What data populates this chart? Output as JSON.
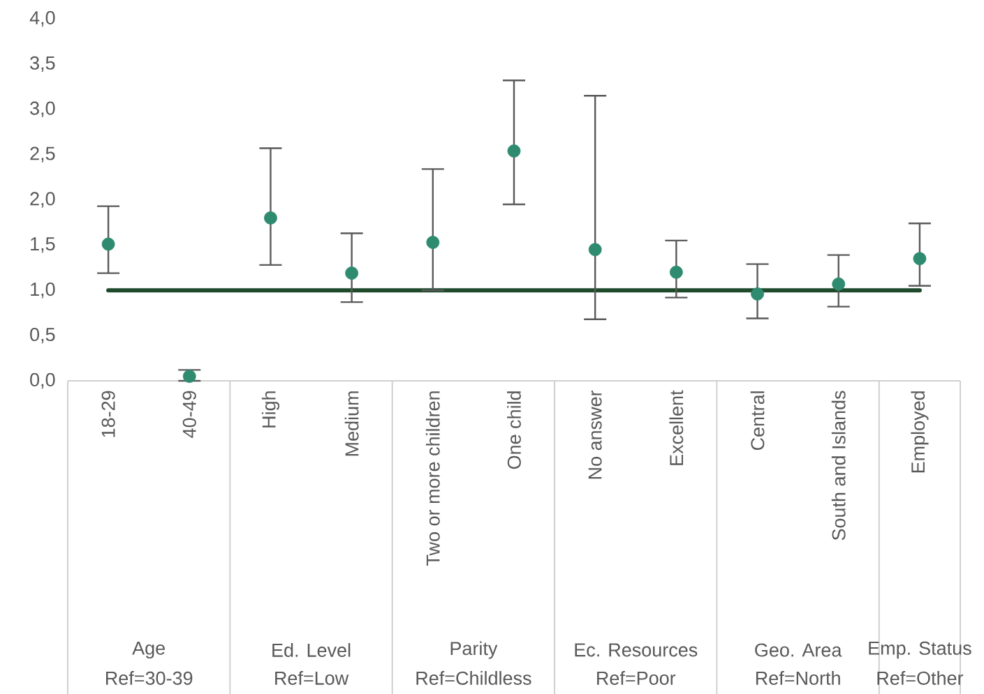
{
  "chart_data": {
    "type": "scatter",
    "categories": [
      "18-29",
      "40-49",
      "High",
      "Medium",
      "Two or more children",
      "One child",
      "No answer",
      "Excellent",
      "Central",
      "South and Islands",
      "Employed"
    ],
    "series": [
      {
        "color": "#2e8b6f",
        "marker": "circle",
        "values": [
          1.51,
          0.05,
          1.8,
          1.19,
          1.53,
          2.54,
          1.45,
          1.2,
          0.96,
          1.07,
          1.35
        ],
        "errors": [
          [
            1.19,
            1.93
          ],
          [
            0.0,
            0.12
          ],
          [
            1.28,
            2.57
          ],
          [
            0.87,
            1.63
          ],
          [
            1.0,
            2.34
          ],
          [
            1.95,
            3.32
          ],
          [
            0.68,
            3.15
          ],
          [
            0.92,
            1.55
          ],
          [
            0.69,
            1.29
          ],
          [
            0.82,
            1.39
          ],
          [
            1.05,
            1.74
          ]
        ]
      },
      {
        "type": "line",
        "color": "#1f4a2c",
        "marker": "none",
        "values": [
          1.0,
          1.0,
          1.0,
          1.0,
          1.0,
          1.0,
          1.0,
          1.0,
          1.0,
          1.0,
          1.0
        ]
      }
    ],
    "ylim": [
      0,
      4
    ],
    "yticks": [
      {
        "value": 0,
        "label": "0,0"
      },
      {
        "value": 0.5,
        "label": "0,5"
      },
      {
        "value": 1,
        "label": "1,0"
      },
      {
        "value": 1.5,
        "label": "1,5"
      },
      {
        "value": 2,
        "label": "2,0"
      },
      {
        "value": 2.5,
        "label": "2,5"
      },
      {
        "value": 3,
        "label": "3,0"
      },
      {
        "value": 3.5,
        "label": "3,5"
      },
      {
        "value": 4,
        "label": "4,0"
      }
    ],
    "annotations": [
      "Age",
      "Ref=30-39",
      "Ed. Level",
      "Ref=Low",
      "Parity",
      "Ref=Childless",
      "Ec. Resources",
      "Ref=Poor",
      "Geo. Area",
      "Ref=North",
      "Emp. Status",
      "Ref=Other"
    ]
  }
}
